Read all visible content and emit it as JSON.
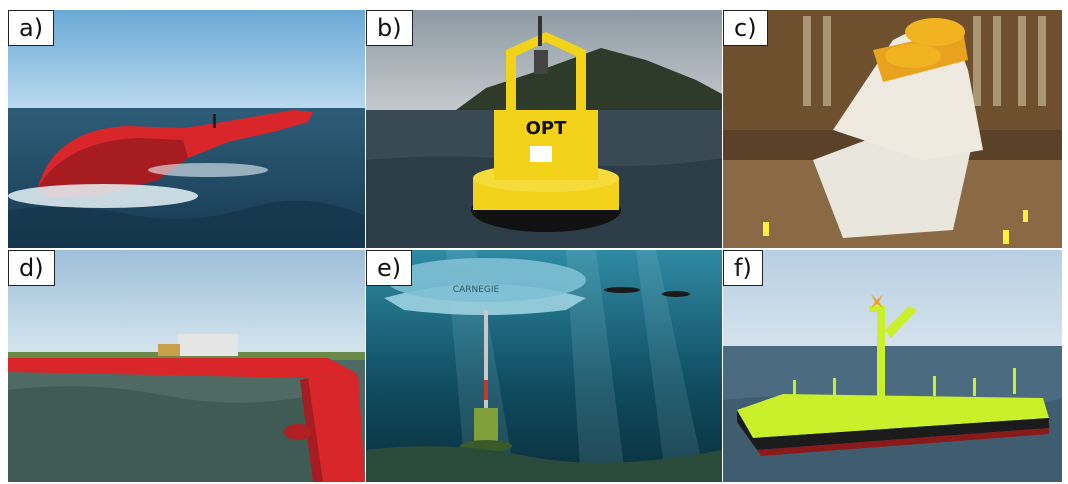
{
  "panels": [
    {
      "label": "a)",
      "subject": "red-wave-energy-converter"
    },
    {
      "label": "b)",
      "subject": "yellow-power-buoy",
      "buoy_text": "OPT"
    },
    {
      "label": "c)",
      "subject": "hinged-wave-device-in-hangar"
    },
    {
      "label": "d)",
      "subject": "red-floating-platform"
    },
    {
      "label": "e)",
      "subject": "submerged-buoy-with-divers",
      "buoy_text": "CARNEGIE"
    },
    {
      "label": "f)",
      "subject": "green-floating-wave-platform"
    }
  ],
  "colors": {
    "sea": "#2f5f7a",
    "sky": "#8fbfe0",
    "red_device": "#d8262a",
    "yellow_buoy": "#f3d21a",
    "hangar": "#6e4f2e",
    "underwater": "#0f4b5f",
    "green_device": "#c9f02a"
  }
}
